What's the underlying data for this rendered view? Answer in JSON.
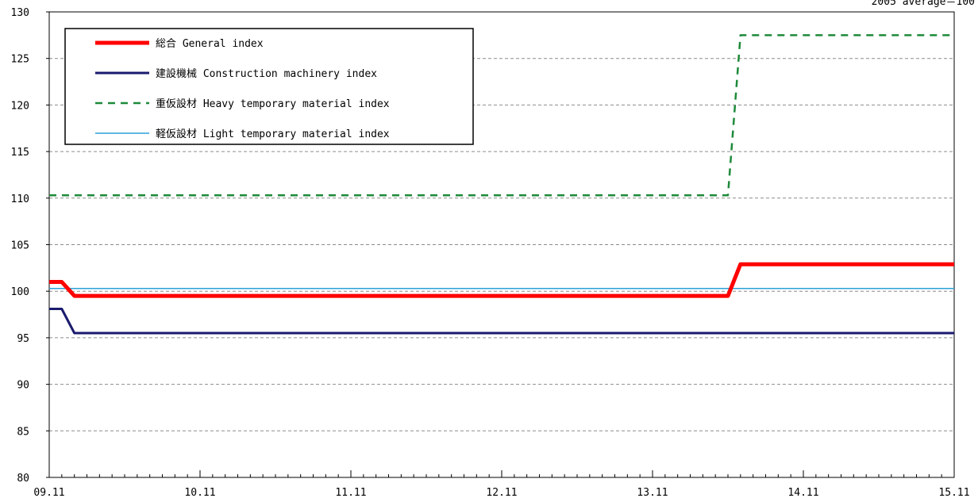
{
  "chart_data": {
    "type": "line",
    "title": "",
    "note": "2005 average＝100",
    "xlabel": "",
    "ylabel": "",
    "ylim": [
      80,
      130
    ],
    "y_ticks": [
      80,
      85,
      90,
      95,
      100,
      105,
      110,
      115,
      120,
      125,
      130
    ],
    "x_ticks": [
      "09.11",
      "10.11",
      "11.11",
      "12.11",
      "13.11",
      "14.11",
      "15.11"
    ],
    "x_range_months": [
      0,
      72
    ],
    "grid": "horizontal dashed",
    "legend_position": "top-left",
    "series": [
      {
        "name": "総合 General index",
        "color": "#ff0000",
        "style": "solid-thick",
        "points": [
          [
            0,
            101.0
          ],
          [
            1,
            101.0
          ],
          [
            2,
            99.5
          ],
          [
            54,
            99.5
          ],
          [
            55,
            102.9
          ],
          [
            72,
            102.9
          ]
        ]
      },
      {
        "name": "建設機械 Construction machinery index",
        "color": "#1a1a6e",
        "style": "solid",
        "points": [
          [
            0,
            98.1
          ],
          [
            1,
            98.1
          ],
          [
            2,
            95.5
          ],
          [
            72,
            95.5
          ]
        ]
      },
      {
        "name": "重仮設材 Heavy temporary material index",
        "color": "#1e8a3a",
        "style": "dashed",
        "points": [
          [
            0,
            110.3
          ],
          [
            54,
            110.3
          ],
          [
            55,
            127.5
          ],
          [
            72,
            127.5
          ]
        ]
      },
      {
        "name": "軽仮設材 Light temporary material index",
        "color": "#2aa0d8",
        "style": "solid-thin",
        "points": [
          [
            0,
            100.3
          ],
          [
            72,
            100.3
          ]
        ]
      }
    ]
  }
}
